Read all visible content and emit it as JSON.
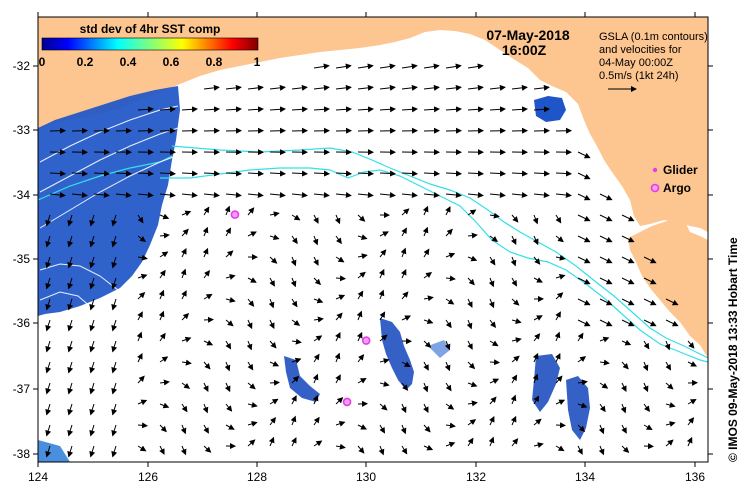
{
  "map": {
    "date": "07-May-2018",
    "time": "16:00Z",
    "legend_lines": [
      "GSLA (0.1m contours)",
      "and velocities for",
      "04-May 00:00Z",
      "0.5m/s (1kt 24h)"
    ],
    "glider_label": "Glider",
    "argo_label": "Argo",
    "credit": "© IMOS 09-May-2018 13:33 Hobart Time",
    "colorbar": {
      "title": "std dev of 4hr SST comp",
      "ticks": [
        "0",
        "0.2",
        "0.4",
        "0.6",
        "0.8",
        "1"
      ]
    },
    "x_ticks": [
      "124",
      "126",
      "128",
      "130",
      "132",
      "134",
      "136"
    ],
    "y_ticks": [
      "-32",
      "-33",
      "-34",
      "-35",
      "-36",
      "-37",
      "-38"
    ],
    "colors": {
      "land": "#fdc58f",
      "ocean": "#ffffff",
      "contour": "#33e0e8",
      "marker": "#e040e0"
    },
    "argo_floats": [
      {
        "lon": 127.6,
        "lat": -34.3
      },
      {
        "lon": 130.0,
        "lat": -36.25
      },
      {
        "lon": 129.65,
        "lat": -37.2
      }
    ]
  }
}
